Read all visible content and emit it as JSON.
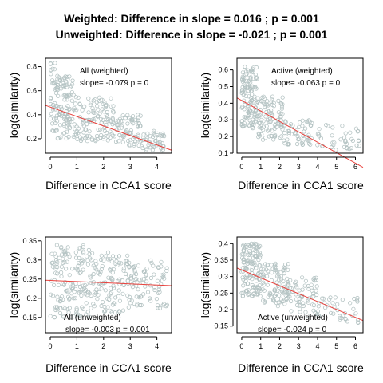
{
  "figure": {
    "title_line1": "Weighted: Difference in slope = 0.016 ; p = 0.001",
    "title_line2": "Unweighted: Difference in slope = -0.021 ; p = 0.001"
  },
  "colors": {
    "points": "#b4c3c3",
    "fit_line": "#e8413c",
    "axis": "#000000"
  },
  "chart_data": [
    {
      "type": "scatter",
      "label": "All (weighted)",
      "slope_text": "slope= -0.079  p =  0",
      "xlabel": "Difference in CCA1 score",
      "ylabel": "log(similarity)",
      "xlim": [
        -0.18,
        4.55
      ],
      "ylim": [
        0.08,
        0.87
      ],
      "xticks": [
        0,
        1,
        2,
        3,
        4
      ],
      "yticks": [
        0.2,
        0.4,
        0.6,
        0.8
      ],
      "fit": {
        "x0": -0.18,
        "y0": 0.478,
        "x1": 4.55,
        "y1": 0.105
      },
      "cloud": [
        {
          "x": [
            0.0,
            0.9
          ],
          "y": [
            0.2,
            0.72
          ],
          "n": 130
        },
        {
          "x": [
            0.9,
            2.4
          ],
          "y": [
            0.18,
            0.55
          ],
          "n": 120
        },
        {
          "x": [
            2.4,
            3.4
          ],
          "y": [
            0.14,
            0.4
          ],
          "n": 70
        },
        {
          "x": [
            3.4,
            4.3
          ],
          "y": [
            0.1,
            0.27
          ],
          "n": 45
        },
        {
          "x": [
            0.0,
            0.3
          ],
          "y": [
            0.7,
            0.84
          ],
          "n": 8
        }
      ],
      "grid": false
    },
    {
      "type": "scatter",
      "label": "Active (weighted)",
      "slope_text": "slope= -0.063  p =  0",
      "xlabel": "Difference in CCA1 score",
      "ylabel": "log(similarity)",
      "xlim": [
        -0.25,
        6.4
      ],
      "ylim": [
        0.1,
        0.67
      ],
      "xticks": [
        0,
        1,
        2,
        3,
        4,
        5,
        6
      ],
      "yticks": [
        0.1,
        0.2,
        0.3,
        0.4,
        0.5,
        0.6
      ],
      "fit": {
        "x0": -0.25,
        "y0": 0.432,
        "x1": 6.4,
        "y1": 0.015
      },
      "cloud": [
        {
          "x": [
            0.0,
            0.8
          ],
          "y": [
            0.25,
            0.63
          ],
          "n": 120
        },
        {
          "x": [
            0.8,
            2.2
          ],
          "y": [
            0.18,
            0.45
          ],
          "n": 100
        },
        {
          "x": [
            2.2,
            3.8
          ],
          "y": [
            0.15,
            0.3
          ],
          "n": 55
        },
        {
          "x": [
            3.8,
            6.2
          ],
          "y": [
            0.12,
            0.27
          ],
          "n": 40
        }
      ],
      "grid": false
    },
    {
      "type": "scatter",
      "label": "All (unweighted)",
      "slope_text": "slope= -0.003  p =  0.001",
      "xlabel": "Difference in CCA1 score",
      "ylabel": "log(similarity)",
      "xlim": [
        -0.18,
        4.55
      ],
      "ylim": [
        0.11,
        0.36
      ],
      "xticks": [
        0,
        1,
        2,
        3,
        4
      ],
      "yticks": [
        0.15,
        0.2,
        0.25,
        0.3,
        0.35
      ],
      "fit": {
        "x0": -0.18,
        "y0": 0.247,
        "x1": 4.55,
        "y1": 0.233
      },
      "cloud": [
        {
          "x": [
            0.0,
            1.5
          ],
          "y": [
            0.15,
            0.34
          ],
          "n": 150
        },
        {
          "x": [
            1.5,
            3.0
          ],
          "y": [
            0.16,
            0.32
          ],
          "n": 120
        },
        {
          "x": [
            3.0,
            4.4
          ],
          "y": [
            0.17,
            0.3
          ],
          "n": 80
        }
      ],
      "grid": false
    },
    {
      "type": "scatter",
      "label": "Active (unweighted)",
      "slope_text": "slope=  -0.024  p =  0",
      "xlabel": "Difference in CCA1 score",
      "ylabel": "log(similarity)",
      "xlim": [
        -0.25,
        6.4
      ],
      "ylim": [
        0.13,
        0.42
      ],
      "xticks": [
        0,
        1,
        2,
        3,
        4,
        5,
        6
      ],
      "yticks": [
        0.15,
        0.2,
        0.25,
        0.3,
        0.35,
        0.4
      ],
      "fit": {
        "x0": -0.25,
        "y0": 0.326,
        "x1": 6.4,
        "y1": 0.167
      },
      "cloud": [
        {
          "x": [
            0.0,
            1.0
          ],
          "y": [
            0.24,
            0.4
          ],
          "n": 130
        },
        {
          "x": [
            1.0,
            2.5
          ],
          "y": [
            0.21,
            0.34
          ],
          "n": 100
        },
        {
          "x": [
            2.5,
            4.0
          ],
          "y": [
            0.18,
            0.3
          ],
          "n": 60
        },
        {
          "x": [
            4.0,
            6.2
          ],
          "y": [
            0.16,
            0.24
          ],
          "n": 40
        }
      ],
      "grid": false
    }
  ]
}
